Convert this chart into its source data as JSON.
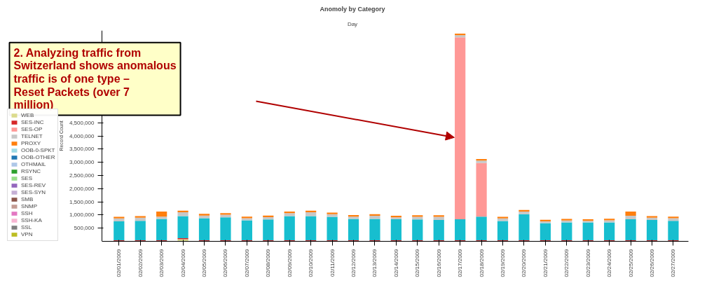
{
  "chart_data": {
    "type": "bar",
    "stacked": true,
    "title": "Anomoly by Category",
    "subtitle": "Day",
    "ylabel": "Record Count",
    "categories": [
      "02/01/2009",
      "02/02/2009",
      "02/03/2009",
      "02/04/2009",
      "02/05/2009",
      "02/06/2009",
      "02/07/2009",
      "02/08/2009",
      "02/09/2009",
      "02/10/2009",
      "02/11/2009",
      "02/12/2009",
      "02/13/2009",
      "02/14/2009",
      "02/15/2009",
      "02/16/2009",
      "02/17/2009",
      "02/18/2009",
      "02/19/2009",
      "02/20/2009",
      "02/21/2009",
      "02/22/2009",
      "02/23/2009",
      "02/24/2009",
      "02/25/2009",
      "02/26/2009",
      "02/27/2009"
    ],
    "series": [
      {
        "name": "WEB",
        "color": "#dbdb8d",
        "values": [
          null,
          null,
          null,
          80000,
          null,
          null,
          null,
          null,
          null,
          null,
          null,
          null,
          null,
          null,
          null,
          null,
          null,
          null,
          null,
          null,
          null,
          null,
          null,
          null,
          null,
          null,
          null
        ]
      },
      {
        "name": "SES-INC",
        "color": "#d62728",
        "values": [
          40000,
          40000,
          40000,
          40000,
          40000,
          40000,
          40000,
          40000,
          40000,
          40000,
          40000,
          40000,
          40000,
          40000,
          40000,
          40000,
          40000,
          40000,
          40000,
          40000,
          40000,
          40000,
          40000,
          40000,
          40000,
          40000,
          40000
        ]
      },
      {
        "color": "#17becf",
        "values": [
          720000,
          740000,
          810000,
          840000,
          840000,
          870000,
          760000,
          790000,
          920000,
          920000,
          890000,
          810000,
          810000,
          800000,
          790000,
          770000,
          800000,
          900000,
          730000,
          990000,
          650000,
          680000,
          680000,
          680000,
          800000,
          770000,
          740000
        ]
      },
      {
        "name": "SES-OP",
        "color": "#ff9896",
        "values": [
          null,
          null,
          null,
          null,
          null,
          null,
          null,
          null,
          null,
          null,
          null,
          null,
          null,
          null,
          null,
          null,
          6900000,
          2030000,
          null,
          null,
          null,
          null,
          null,
          null,
          null,
          null,
          null
        ]
      },
      {
        "name": "TELNET",
        "color": "#c7c7c7",
        "values": [
          110000,
          120000,
          90000,
          140000,
          100000,
          100000,
          80000,
          90000,
          110000,
          140000,
          100000,
          90000,
          120000,
          70000,
          100000,
          120000,
          80000,
          90000,
          100000,
          100000,
          70000,
          70000,
          60000,
          80000,
          130000,
          90000,
          100000
        ]
      },
      {
        "name": "PROXY",
        "color": "#ff7f0e",
        "values": [
          60000,
          60000,
          190000,
          60000,
          60000,
          60000,
          60000,
          60000,
          60000,
          60000,
          60000,
          60000,
          60000,
          60000,
          60000,
          60000,
          60000,
          60000,
          60000,
          60000,
          60000,
          60000,
          60000,
          60000,
          160000,
          60000,
          60000
        ]
      },
      {
        "name": "OOB-0-SPKT",
        "color": "#9edae5",
        "values": [
          null,
          null,
          null,
          null,
          null,
          null,
          null,
          null,
          null,
          null,
          null,
          null,
          null,
          null,
          null,
          null,
          null,
          null,
          null,
          null,
          null,
          null,
          null,
          null,
          null,
          null,
          null
        ]
      },
      {
        "name": "OOB-OTHER",
        "color": "#1f77b4",
        "values": [
          null,
          null,
          null,
          null,
          null,
          null,
          null,
          null,
          null,
          null,
          null,
          null,
          null,
          null,
          null,
          null,
          null,
          null,
          null,
          null,
          null,
          null,
          null,
          null,
          null,
          null,
          null
        ]
      },
      {
        "name": "OTHMAIL",
        "color": "#aec7e8",
        "values": [
          null,
          null,
          null,
          null,
          null,
          null,
          null,
          null,
          null,
          null,
          null,
          null,
          null,
          null,
          null,
          null,
          null,
          null,
          null,
          null,
          null,
          null,
          null,
          null,
          null,
          null,
          null
        ]
      },
      {
        "name": "RSYNC",
        "color": "#2ca02c",
        "values": [
          null,
          null,
          null,
          null,
          null,
          null,
          null,
          null,
          null,
          null,
          null,
          null,
          null,
          null,
          null,
          null,
          null,
          null,
          null,
          null,
          null,
          null,
          null,
          null,
          null,
          null,
          null
        ]
      },
      {
        "name": "SES",
        "color": "#98df8a",
        "values": [
          null,
          null,
          null,
          null,
          null,
          null,
          null,
          null,
          null,
          null,
          null,
          null,
          null,
          null,
          null,
          null,
          null,
          null,
          null,
          null,
          null,
          null,
          null,
          null,
          null,
          null,
          null
        ]
      },
      {
        "name": "SES-REV",
        "color": "#9467bd",
        "values": [
          null,
          null,
          null,
          null,
          null,
          null,
          null,
          null,
          null,
          null,
          null,
          null,
          null,
          null,
          null,
          null,
          null,
          null,
          null,
          null,
          null,
          null,
          null,
          null,
          null,
          null,
          null
        ]
      },
      {
        "name": "SES-SYN",
        "color": "#c5b0d5",
        "values": [
          null,
          null,
          null,
          null,
          null,
          null,
          null,
          null,
          null,
          null,
          null,
          null,
          null,
          null,
          null,
          null,
          null,
          null,
          null,
          null,
          null,
          null,
          null,
          null,
          null,
          null,
          null
        ]
      },
      {
        "name": "SMB",
        "color": "#8c564b",
        "values": [
          null,
          null,
          null,
          null,
          null,
          null,
          null,
          null,
          null,
          null,
          null,
          null,
          null,
          null,
          null,
          null,
          null,
          null,
          null,
          null,
          null,
          null,
          null,
          null,
          null,
          null,
          null
        ]
      },
      {
        "name": "SNMP",
        "color": "#c49c94",
        "values": [
          null,
          null,
          null,
          null,
          null,
          null,
          null,
          null,
          null,
          null,
          null,
          null,
          null,
          null,
          null,
          null,
          null,
          null,
          null,
          null,
          null,
          null,
          null,
          null,
          null,
          null,
          null
        ]
      },
      {
        "name": "SSH",
        "color": "#e377c2",
        "values": [
          null,
          null,
          null,
          null,
          null,
          null,
          null,
          null,
          null,
          null,
          null,
          null,
          null,
          null,
          null,
          null,
          null,
          null,
          null,
          null,
          null,
          null,
          null,
          null,
          null,
          null,
          null
        ]
      },
      {
        "name": "SSH-KA",
        "color": "#f7b6d2",
        "values": [
          null,
          null,
          null,
          null,
          null,
          null,
          null,
          null,
          null,
          null,
          null,
          null,
          null,
          null,
          null,
          null,
          null,
          null,
          null,
          null,
          null,
          null,
          null,
          null,
          null,
          null,
          null
        ]
      },
      {
        "name": "SSL",
        "color": "#7f7f7f",
        "values": [
          null,
          null,
          null,
          null,
          null,
          null,
          null,
          null,
          null,
          null,
          null,
          null,
          null,
          null,
          null,
          null,
          null,
          null,
          null,
          null,
          null,
          null,
          null,
          null,
          null,
          null,
          null
        ]
      },
      {
        "name": "VPN",
        "color": "#bcbd22",
        "values": [
          null,
          null,
          null,
          null,
          null,
          null,
          null,
          null,
          null,
          null,
          null,
          null,
          null,
          null,
          null,
          null,
          null,
          null,
          null,
          null,
          null,
          null,
          null,
          null,
          null,
          null,
          null
        ]
      }
    ],
    "ylim": [
      0,
      8000000
    ],
    "yticks": [
      {
        "value": 500000,
        "label": "500,000"
      },
      {
        "value": 1000000,
        "label": "1,000,000"
      },
      {
        "value": 1500000,
        "label": "1,500,000"
      },
      {
        "value": 2000000,
        "label": "2,000,000"
      },
      {
        "value": 2500000,
        "label": "2,500,000"
      },
      {
        "value": 3000000,
        "label": "3,000,000"
      },
      {
        "value": 3500000,
        "label": "3,500,000"
      },
      {
        "value": 4000000,
        "label": "4,000,000"
      },
      {
        "value": 4500000,
        "label": "4,500,000"
      }
    ],
    "grid": false,
    "legend": "left",
    "annotations": [
      "2. Analyzing traffic from Switzerland shows anomalous traffic is of one type – Reset Packets (over 7 million)"
    ]
  }
}
